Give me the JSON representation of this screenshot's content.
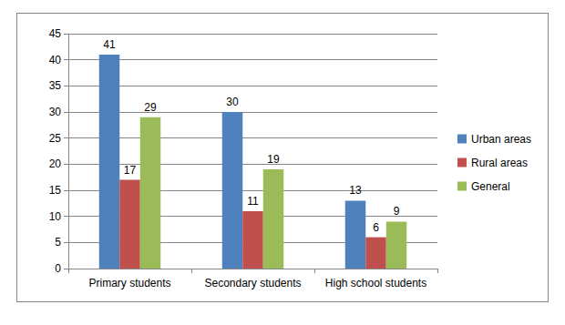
{
  "chart_data": {
    "type": "bar",
    "categories": [
      "Primary students",
      "Secondary students",
      "High school students"
    ],
    "series": [
      {
        "name": "Urban areas",
        "color": "#4F81BD",
        "values": [
          41,
          30,
          13
        ]
      },
      {
        "name": "Rural areas",
        "color": "#C0504D",
        "values": [
          17,
          11,
          6
        ]
      },
      {
        "name": "General",
        "color": "#9BBB59",
        "values": [
          29,
          19,
          9
        ]
      }
    ],
    "ylim": [
      0,
      45
    ],
    "yticks": [
      0,
      5,
      10,
      15,
      20,
      25,
      30,
      35,
      40,
      45
    ],
    "grid": true,
    "legend": "right",
    "data_labels": true
  }
}
